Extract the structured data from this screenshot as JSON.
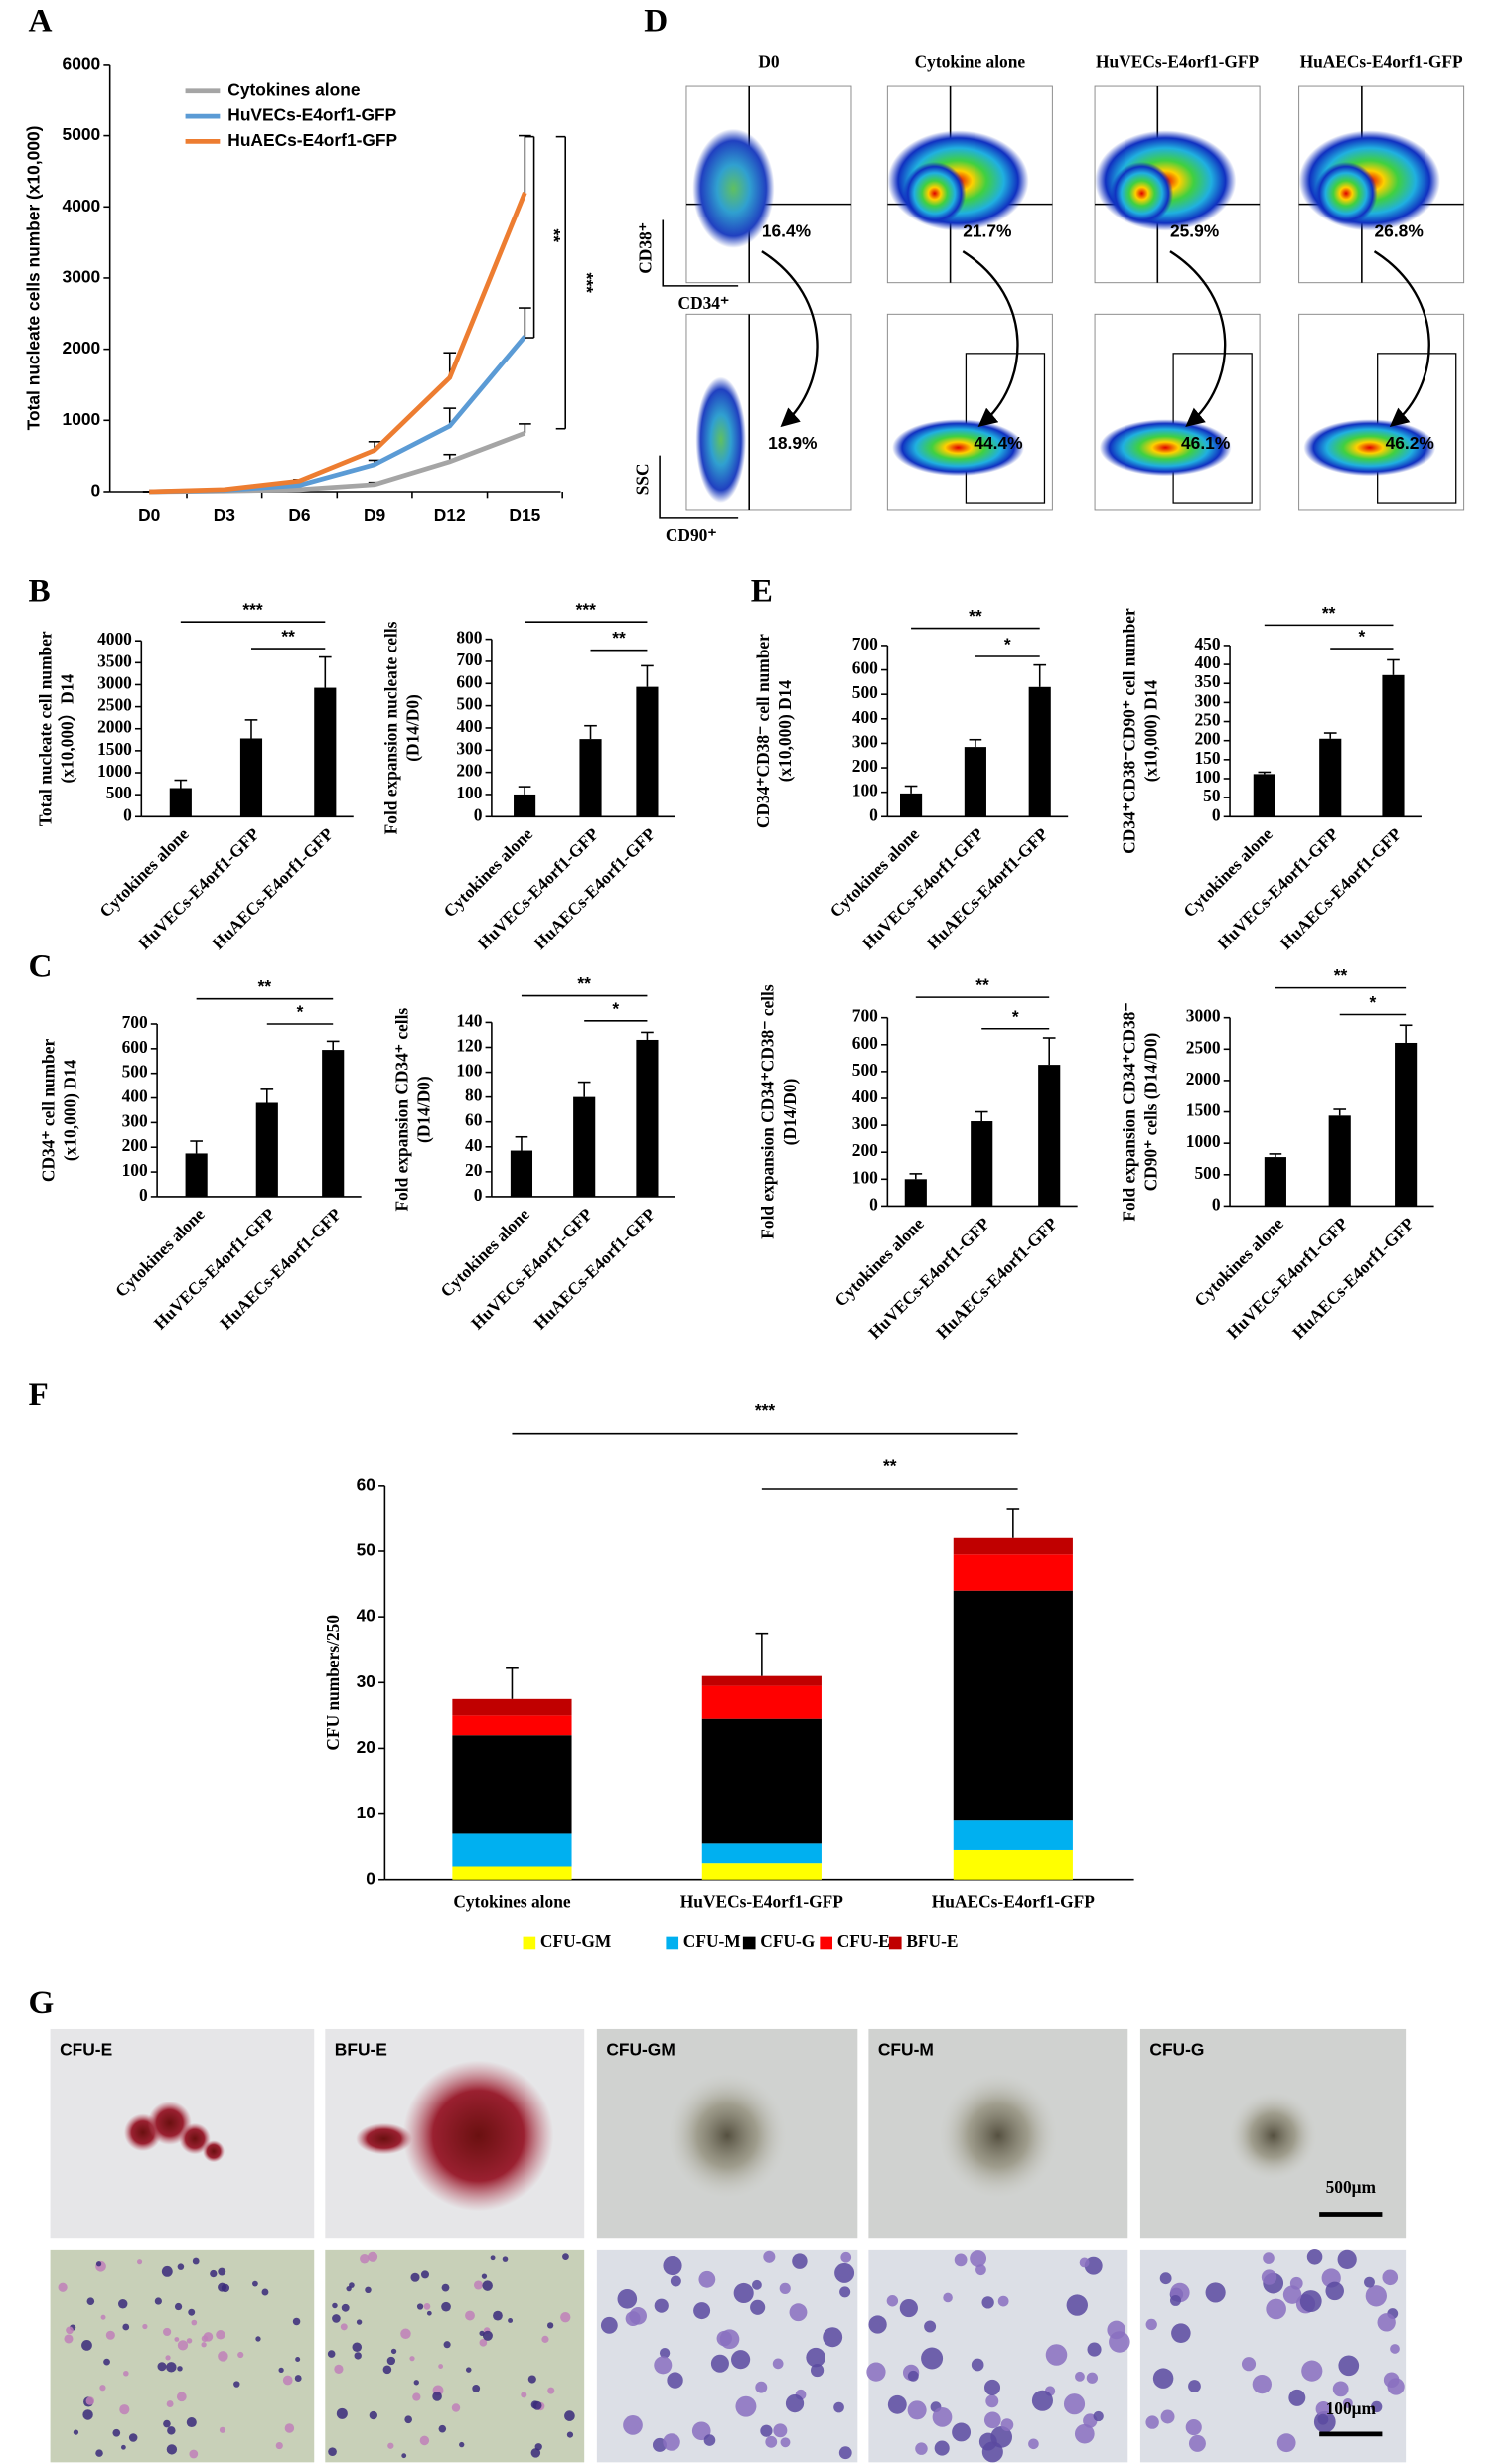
{
  "panel_labels": [
    "A",
    "B",
    "C",
    "D",
    "E",
    "F",
    "G"
  ],
  "chart_data": [
    {
      "type": "line",
      "y_label": "Total nucleate cells number (x10,000)",
      "categories": [
        "D0",
        "D3",
        "D6",
        "D9",
        "D12",
        "D15"
      ],
      "series": [
        {
          "name": "Cytokines alone",
          "color": "#a5a5a5",
          "values": [
            0,
            10,
            30,
            100,
            420,
            820
          ],
          "errors": [
            0,
            0,
            0,
            30,
            100,
            130
          ]
        },
        {
          "name": "HuVECs-E4orf1-GFP",
          "color": "#5b9bd5",
          "values": [
            0,
            20,
            90,
            380,
            920,
            2180
          ],
          "errors": [
            0,
            0,
            20,
            60,
            250,
            400
          ]
        },
        {
          "name": "HuAECs-E4orf1-GFP",
          "color": "#ed7d31",
          "values": [
            0,
            30,
            150,
            580,
            1600,
            4200
          ],
          "errors": [
            0,
            0,
            20,
            120,
            350,
            800
          ]
        }
      ],
      "ylim": [
        0,
        6000
      ],
      "yticks": [
        0,
        1000,
        2000,
        3000,
        4000,
        5000,
        6000
      ],
      "annotations": [
        "**",
        "***"
      ]
    },
    {
      "type": "bar",
      "y_label": [
        "Total nucleate cell number",
        "(x10,000）D14"
      ],
      "categories": [
        "Cytokines alone",
        "HuVECs-E4orf1-GFP",
        "HuAECs-E4orf1-GFP"
      ],
      "values": [
        650,
        1780,
        2930
      ],
      "errors": [
        180,
        420,
        700
      ],
      "color": "#000000",
      "ylim": [
        0,
        4000
      ],
      "yticks": [
        0,
        500,
        1000,
        1500,
        2000,
        2500,
        3000,
        3500,
        4000
      ],
      "annotations": [
        "***",
        "**"
      ]
    },
    {
      "type": "bar",
      "y_label": [
        "Fold expansion nucleate cells",
        "(D14/D0)"
      ],
      "categories": [
        "Cytokines alone",
        "HuVECs-E4orf1-GFP",
        "HuAECs-E4orf1-GFP"
      ],
      "values": [
        100,
        350,
        585
      ],
      "errors": [
        35,
        60,
        95
      ],
      "color": "#000000",
      "ylim": [
        0,
        800
      ],
      "yticks": [
        0,
        100,
        200,
        300,
        400,
        500,
        600,
        700,
        800
      ],
      "annotations": [
        "***",
        "**"
      ]
    },
    {
      "type": "bar",
      "y_label": [
        "CD34⁺ cell number",
        "(x10,000) D14"
      ],
      "categories": [
        "Cytokines alone",
        "HuVECs-E4orf1-GFP",
        "HuAECs-E4orf1-GFP"
      ],
      "values": [
        175,
        380,
        595
      ],
      "errors": [
        50,
        55,
        35
      ],
      "color": "#000000",
      "ylim": [
        0,
        700
      ],
      "yticks": [
        0,
        100,
        200,
        300,
        400,
        500,
        600,
        700
      ],
      "annotations": [
        "**",
        "*"
      ]
    },
    {
      "type": "bar",
      "y_label": [
        "Fold expansion  CD34⁺ cells",
        "(D14/D0)"
      ],
      "categories": [
        "Cytokines alone",
        "HuVECs-E4orf1-GFP",
        "HuAECs-E4orf1-GFP"
      ],
      "values": [
        37,
        80,
        126
      ],
      "errors": [
        11,
        12,
        6
      ],
      "color": "#000000",
      "ylim": [
        0,
        140
      ],
      "yticks": [
        0,
        20,
        40,
        60,
        80,
        100,
        120,
        140
      ],
      "annotations": [
        "**",
        "*"
      ]
    },
    {
      "type": "bar",
      "y_label": [
        "CD34⁺CD38⁻ cell number",
        "(x10,000) D14"
      ],
      "categories": [
        "Cytokines alone",
        "HuVECs-E4orf1-GFP",
        "HuAECs-E4orf1-GFP"
      ],
      "values": [
        95,
        285,
        530
      ],
      "errors": [
        30,
        30,
        90
      ],
      "color": "#000000",
      "ylim": [
        0,
        700
      ],
      "yticks": [
        0,
        100,
        200,
        300,
        400,
        500,
        600,
        700
      ],
      "annotations": [
        "**",
        "*"
      ]
    },
    {
      "type": "bar",
      "y_label": [
        "CD34⁺CD38⁻CD90⁺ cell number",
        "(x10,000) D14"
      ],
      "categories": [
        "Cytokines alone",
        "HuVECs-E4orf1-GFP",
        "HuAECs-E4orf1-GFP"
      ],
      "values": [
        112,
        205,
        372
      ],
      "errors": [
        5,
        15,
        40
      ],
      "color": "#000000",
      "ylim": [
        0,
        450
      ],
      "yticks": [
        0,
        50,
        100,
        150,
        200,
        250,
        300,
        350,
        400,
        450
      ],
      "annotations": [
        "**",
        "*"
      ]
    },
    {
      "type": "bar",
      "y_label": [
        "Fold expansion CD34⁺CD38⁻ cells",
        "(D14/D0)"
      ],
      "categories": [
        "Cytokines alone",
        "HuVECs-E4orf1-GFP",
        "HuAECs-E4orf1-GFP"
      ],
      "values": [
        100,
        315,
        525
      ],
      "errors": [
        20,
        35,
        100
      ],
      "color": "#000000",
      "ylim": [
        0,
        700
      ],
      "yticks": [
        0,
        100,
        200,
        300,
        400,
        500,
        600,
        700
      ],
      "annotations": [
        "**",
        "*"
      ]
    },
    {
      "type": "bar",
      "y_label": [
        "Fold expansion  CD34⁺CD38⁻",
        "CD90⁺ cells (D14/D0)"
      ],
      "categories": [
        "Cytokines alone",
        "HuVECs-E4orf1-GFP",
        "HuAECs-E4orf1-GFP"
      ],
      "values": [
        780,
        1440,
        2600
      ],
      "errors": [
        50,
        100,
        280
      ],
      "color": "#000000",
      "ylim": [
        0,
        3000
      ],
      "yticks": [
        0,
        500,
        1000,
        1500,
        2000,
        2500,
        3000
      ],
      "annotations": [
        "**",
        "*"
      ]
    },
    {
      "type": "stacked_bar",
      "y_label": "CFU numbers/250",
      "categories": [
        "Cytokines alone",
        "HuVECs-E4orf1-GFP",
        "HuAECs-E4orf1-GFP"
      ],
      "series": [
        {
          "name": "CFU-GM",
          "color": "#ffff00",
          "values": [
            2,
            2.5,
            4.5
          ]
        },
        {
          "name": "CFU-M",
          "color": "#00b0f0",
          "values": [
            5,
            3,
            4.5
          ]
        },
        {
          "name": "CFU-G",
          "color": "#000000",
          "values": [
            15,
            19,
            35
          ]
        },
        {
          "name": "CFU-E",
          "color": "#ff0000",
          "values": [
            3,
            5,
            5.5
          ]
        },
        {
          "name": "BFU-E",
          "color": "#c00000",
          "values": [
            2.5,
            1.5,
            2.5
          ]
        }
      ],
      "errors": [
        4.7,
        6.5,
        4.5
      ],
      "ylim": [
        0,
        60
      ],
      "yticks": [
        0,
        10,
        20,
        30,
        40,
        50,
        60
      ],
      "annotations": [
        "***",
        "**"
      ]
    }
  ],
  "flow_cytometry": {
    "columns": [
      "D0",
      "Cytokine alone",
      "HuVECs-E4orf1-GFP",
      "HuAECs-E4orf1-GFP"
    ],
    "cd34_cd38_percent": [
      "16.4%",
      "21.7%",
      "25.9%",
      "26.8%"
    ],
    "cd90_percent": [
      "18.9%",
      "44.4%",
      "46.1%",
      "46.2%"
    ],
    "axis_labels": {
      "cd38": "CD38⁺",
      "cd34": "CD34⁺",
      "ssc": "SSC",
      "cd90": "CD90⁺"
    }
  },
  "micrographs": {
    "labels": [
      "CFU-E",
      "BFU-E",
      "CFU-GM",
      "CFU-M",
      "CFU-G"
    ],
    "scale_bars": [
      "500μm",
      "100μm"
    ]
  }
}
